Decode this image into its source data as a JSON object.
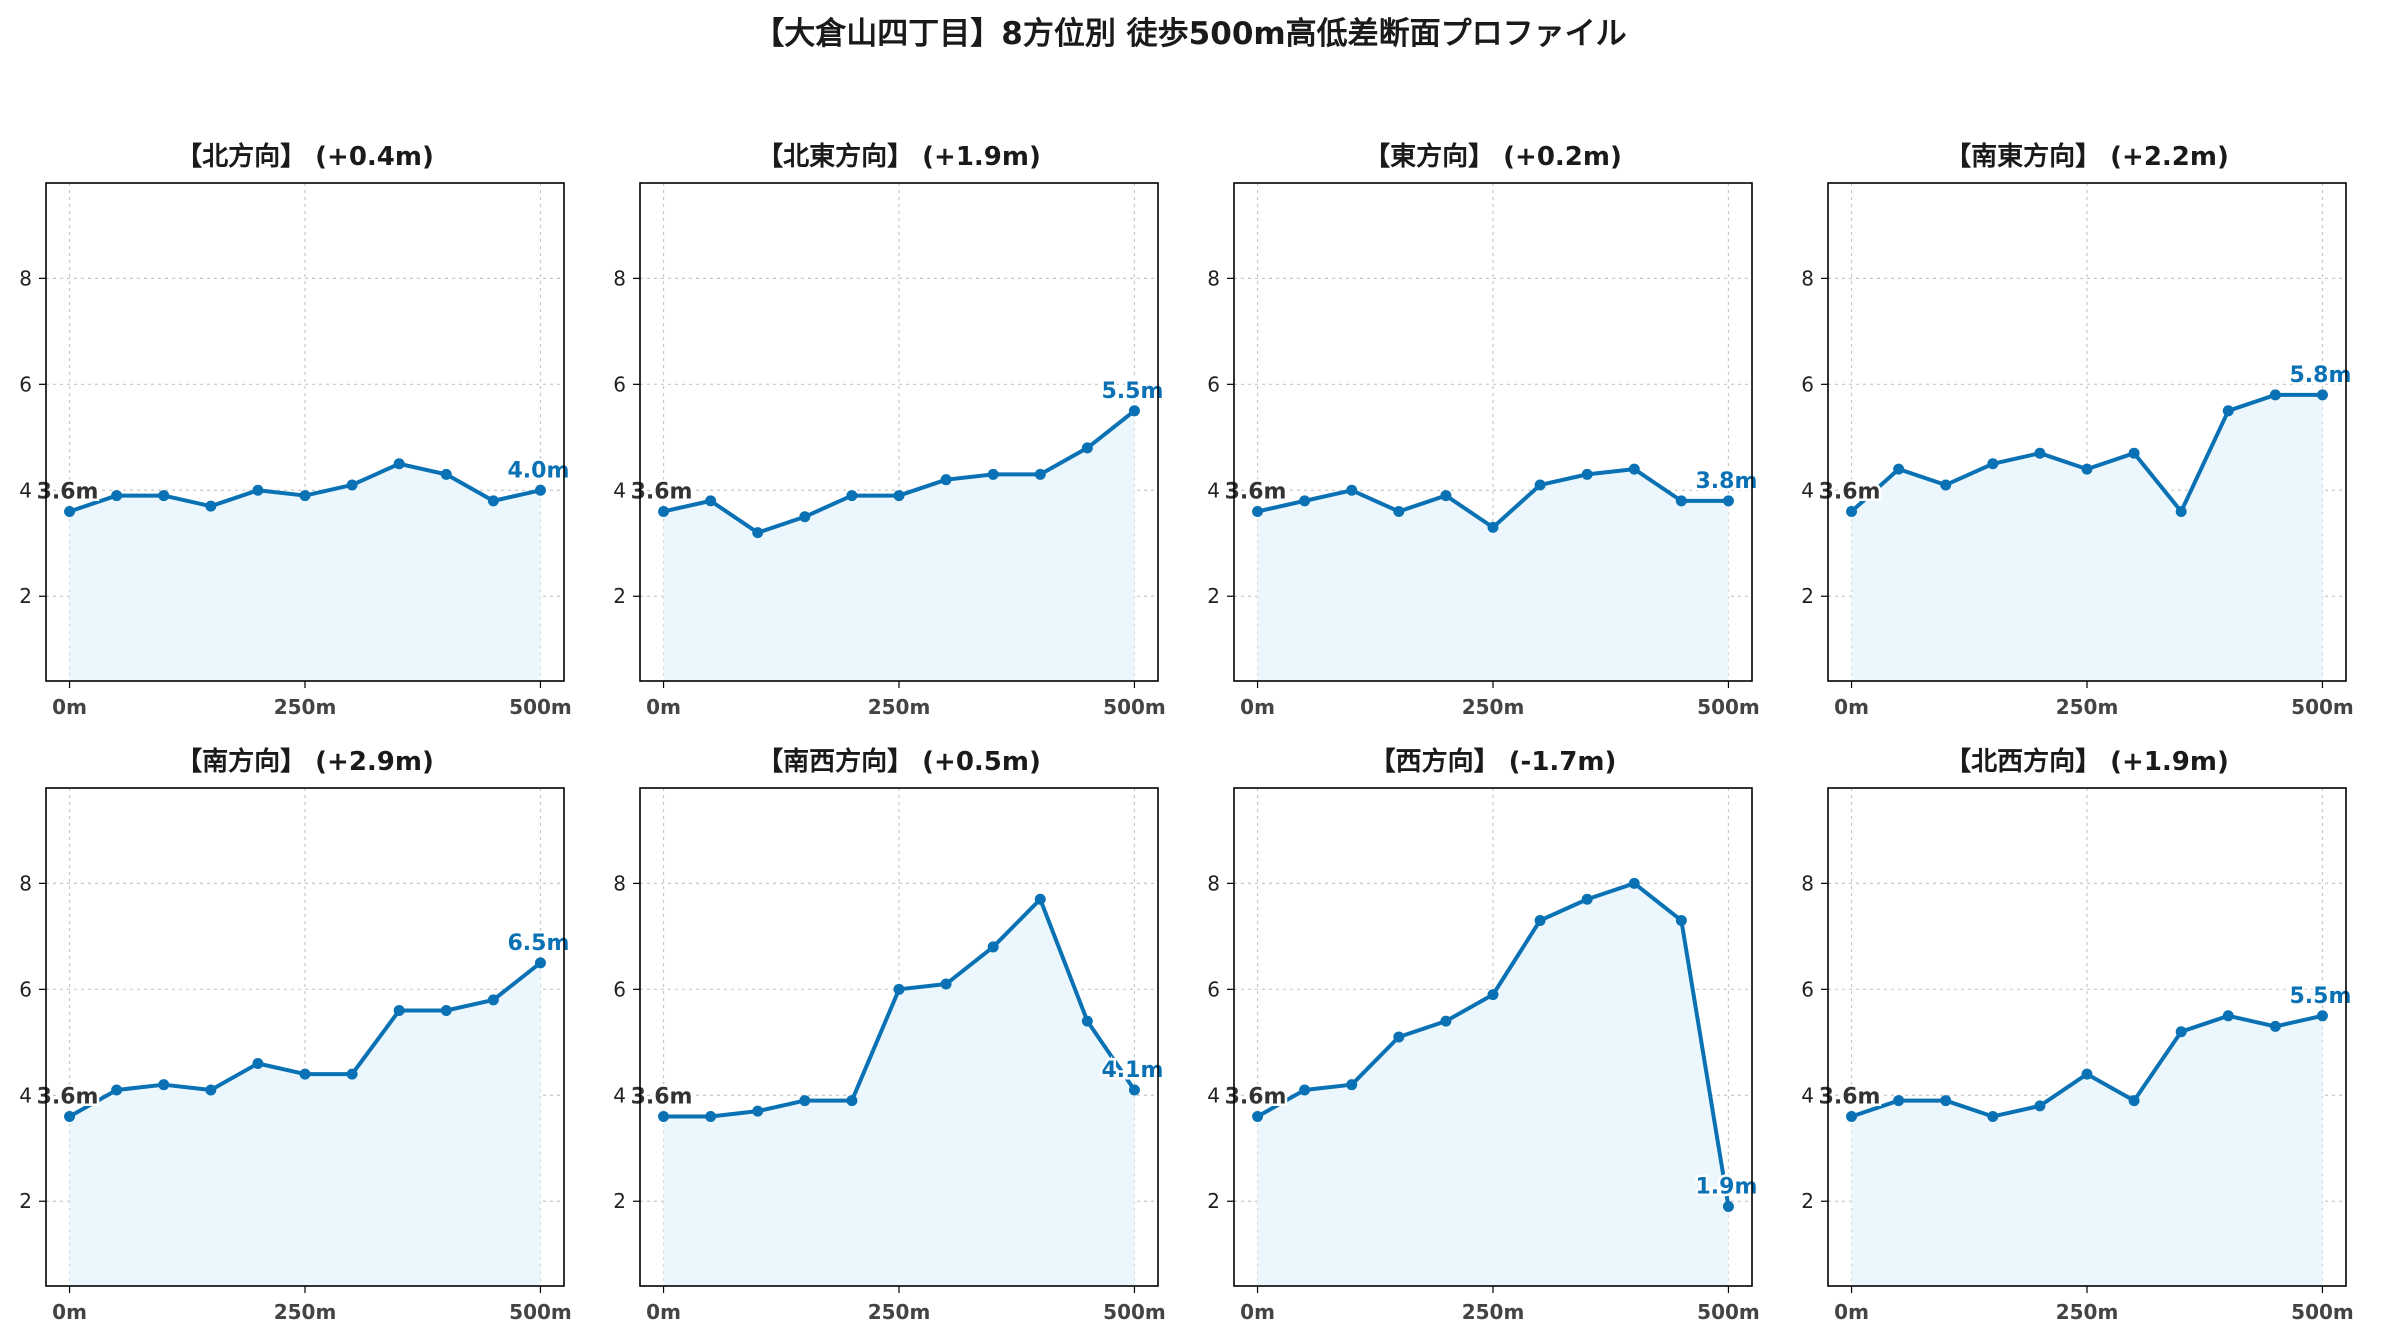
{
  "figure": {
    "title": "【大倉山四丁目】8方位別 徒歩500m高低差断面プロファイル",
    "line_color": "#0a72b4",
    "fill_color": "#ebf7fc",
    "grid_color": "#c8c8c8",
    "label_color": "#333333"
  },
  "chart_data": [
    {
      "type": "line",
      "title": "【北方向】 (+0.4m)",
      "x": [
        0,
        50,
        100,
        150,
        200,
        250,
        300,
        350,
        400,
        450,
        500
      ],
      "y": [
        3.6,
        3.9,
        3.9,
        3.7,
        4.0,
        3.9,
        4.1,
        4.5,
        4.3,
        3.8,
        4.0
      ],
      "start_label": "3.6m",
      "end_label": "4.0m",
      "xticks": [
        "0m",
        "250m",
        "500m"
      ],
      "yticks": [
        2,
        4,
        6,
        8
      ],
      "xlim": [
        -25,
        525
      ],
      "ylim": [
        0.4,
        9.8
      ],
      "grid": true
    },
    {
      "type": "line",
      "title": "【北東方向】 (+1.9m)",
      "x": [
        0,
        50,
        100,
        150,
        200,
        250,
        300,
        350,
        400,
        450,
        500
      ],
      "y": [
        3.6,
        3.8,
        3.2,
        3.5,
        3.9,
        3.9,
        4.2,
        4.3,
        4.3,
        4.8,
        5.5
      ],
      "start_label": "3.6m",
      "end_label": "5.5m",
      "xticks": [
        "0m",
        "250m",
        "500m"
      ],
      "yticks": [
        2,
        4,
        6,
        8
      ],
      "xlim": [
        -25,
        525
      ],
      "ylim": [
        0.4,
        9.8
      ],
      "grid": true
    },
    {
      "type": "line",
      "title": "【東方向】 (+0.2m)",
      "x": [
        0,
        50,
        100,
        150,
        200,
        250,
        300,
        350,
        400,
        450,
        500
      ],
      "y": [
        3.6,
        3.8,
        4.0,
        3.6,
        3.9,
        3.3,
        4.1,
        4.3,
        4.4,
        3.8,
        3.8
      ],
      "start_label": "3.6m",
      "end_label": "3.8m",
      "xticks": [
        "0m",
        "250m",
        "500m"
      ],
      "yticks": [
        2,
        4,
        6,
        8
      ],
      "xlim": [
        -25,
        525
      ],
      "ylim": [
        0.4,
        9.8
      ],
      "grid": true
    },
    {
      "type": "line",
      "title": "【南東方向】 (+2.2m)",
      "x": [
        0,
        50,
        100,
        150,
        200,
        250,
        300,
        350,
        400,
        450,
        500
      ],
      "y": [
        3.6,
        4.4,
        4.1,
        4.5,
        4.7,
        4.4,
        4.7,
        3.6,
        5.5,
        5.8,
        5.8
      ],
      "start_label": "3.6m",
      "end_label": "5.8m",
      "xticks": [
        "0m",
        "250m",
        "500m"
      ],
      "yticks": [
        2,
        4,
        6,
        8
      ],
      "xlim": [
        -25,
        525
      ],
      "ylim": [
        0.4,
        9.8
      ],
      "grid": true
    },
    {
      "type": "line",
      "title": "【南方向】 (+2.9m)",
      "x": [
        0,
        50,
        100,
        150,
        200,
        250,
        300,
        350,
        400,
        450,
        500
      ],
      "y": [
        3.6,
        4.1,
        4.2,
        4.1,
        4.6,
        4.4,
        4.4,
        5.6,
        5.6,
        5.8,
        6.5
      ],
      "start_label": "3.6m",
      "end_label": "6.5m",
      "xticks": [
        "0m",
        "250m",
        "500m"
      ],
      "yticks": [
        2,
        4,
        6,
        8
      ],
      "xlim": [
        -25,
        525
      ],
      "ylim": [
        0.4,
        9.8
      ],
      "grid": true
    },
    {
      "type": "line",
      "title": "【南西方向】 (+0.5m)",
      "x": [
        0,
        50,
        100,
        150,
        200,
        250,
        300,
        350,
        400,
        450,
        500
      ],
      "y": [
        3.6,
        3.6,
        3.7,
        3.9,
        3.9,
        6.0,
        6.1,
        6.8,
        7.7,
        5.4,
        4.1
      ],
      "start_label": "3.6m",
      "end_label": "4.1m",
      "xticks": [
        "0m",
        "250m",
        "500m"
      ],
      "yticks": [
        2,
        4,
        6,
        8
      ],
      "xlim": [
        -25,
        525
      ],
      "ylim": [
        0.4,
        9.8
      ],
      "grid": true
    },
    {
      "type": "line",
      "title": "【西方向】 (-1.7m)",
      "x": [
        0,
        50,
        100,
        150,
        200,
        250,
        300,
        350,
        400,
        450,
        500
      ],
      "y": [
        3.6,
        4.1,
        4.2,
        5.1,
        5.4,
        5.9,
        7.3,
        7.7,
        8.0,
        7.3,
        1.9
      ],
      "start_label": "3.6m",
      "end_label": "1.9m",
      "xticks": [
        "0m",
        "250m",
        "500m"
      ],
      "yticks": [
        2,
        4,
        6,
        8
      ],
      "xlim": [
        -25,
        525
      ],
      "ylim": [
        0.4,
        9.8
      ],
      "grid": true
    },
    {
      "type": "line",
      "title": "【北西方向】 (+1.9m)",
      "x": [
        0,
        50,
        100,
        150,
        200,
        250,
        300,
        350,
        400,
        450,
        500
      ],
      "y": [
        3.6,
        3.9,
        3.9,
        3.6,
        3.8,
        4.4,
        3.9,
        5.2,
        5.5,
        5.3,
        5.5
      ],
      "start_label": "3.6m",
      "end_label": "5.5m",
      "xticks": [
        "0m",
        "250m",
        "500m"
      ],
      "yticks": [
        2,
        4,
        6,
        8
      ],
      "xlim": [
        -25,
        525
      ],
      "ylim": [
        0.4,
        9.8
      ],
      "grid": true
    }
  ]
}
